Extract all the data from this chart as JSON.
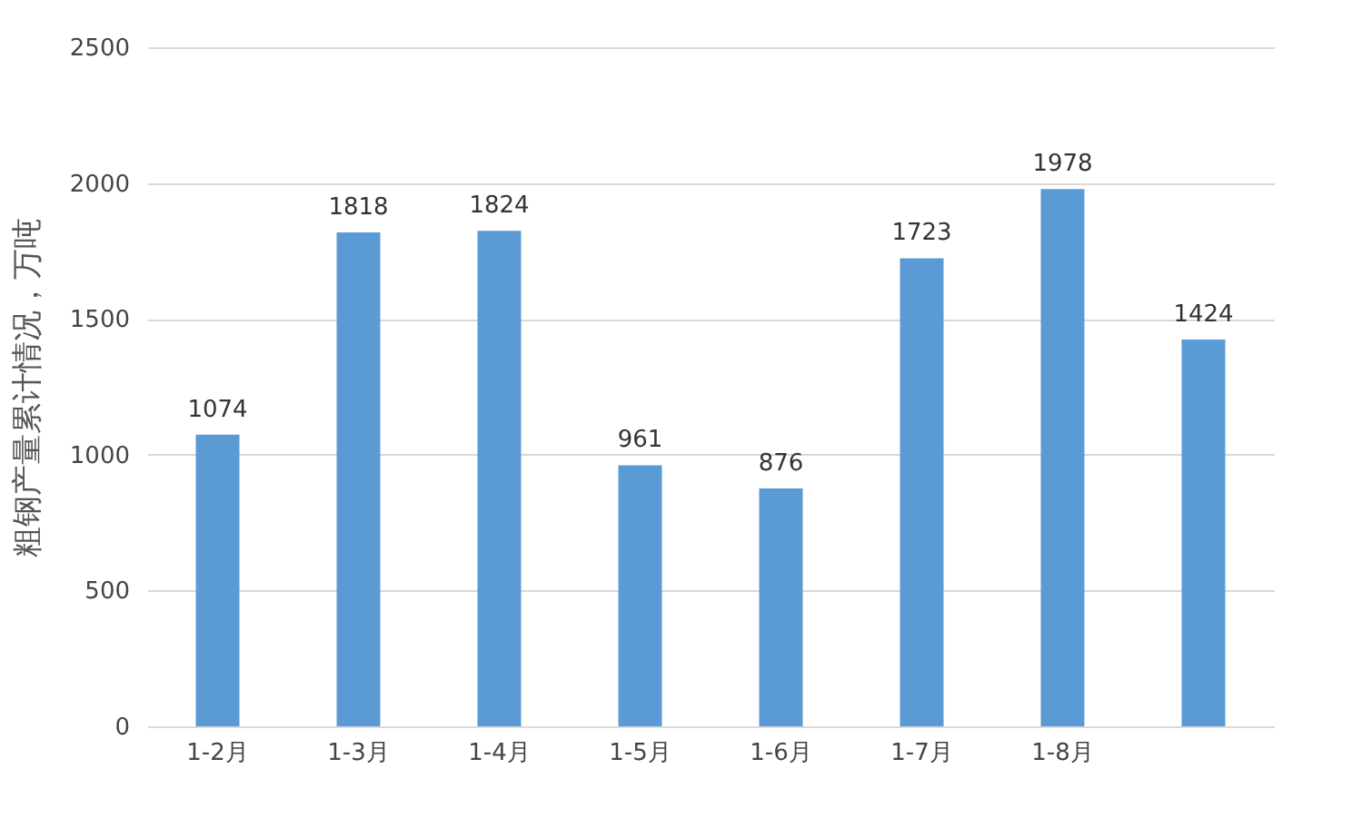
{
  "chart_data": {
    "type": "bar",
    "ylabel": "粗钢产量累计情况，万吨",
    "categories": [
      "1-2月",
      "1-3月",
      "1-4月",
      "1-5月",
      "1-6月",
      "1-7月",
      "1-8月",
      null
    ],
    "values": [
      1074,
      1818,
      1824,
      961,
      876,
      1723,
      1978,
      1424
    ],
    "color": "#5b9bd5",
    "ylim": [
      0,
      2500
    ],
    "yticks": [
      0,
      500,
      1000,
      1500,
      2000,
      2500
    ],
    "grid": "y",
    "data_labels": true
  }
}
